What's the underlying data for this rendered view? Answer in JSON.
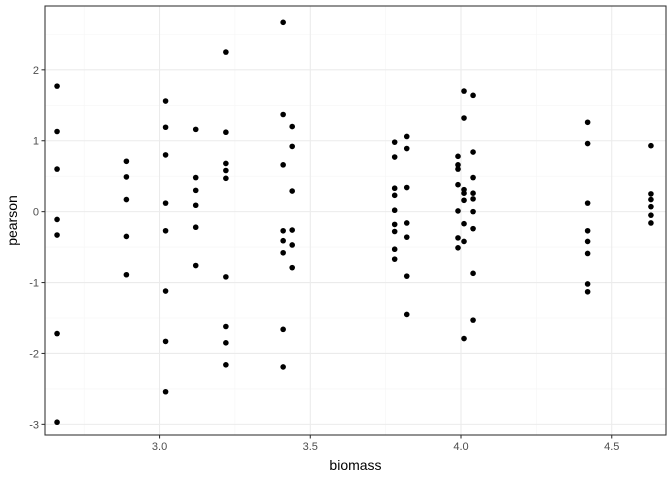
{
  "chart_data": {
    "type": "scatter",
    "title": "",
    "xlabel": "biomass",
    "ylabel": "pearson",
    "xlim": [
      2.62,
      4.68
    ],
    "ylim": [
      -3.15,
      2.9
    ],
    "x_ticks": [
      3.0,
      3.5,
      4.0,
      4.5
    ],
    "x_tick_labels": [
      "3.0",
      "3.5",
      "4.0",
      "4.5"
    ],
    "y_ticks": [
      -3,
      -2,
      -1,
      0,
      1,
      2
    ],
    "y_tick_labels": [
      "-3",
      "-2",
      "-1",
      "0",
      "1",
      "2"
    ],
    "grid": true,
    "legend": "none",
    "point_color": "#000000",
    "series": [
      {
        "x": [
          2.66,
          2.66,
          2.66,
          2.66,
          2.66,
          2.66,
          2.66,
          2.89,
          2.89,
          2.89,
          2.89,
          2.89,
          3.02,
          3.02,
          3.02,
          3.02,
          3.02,
          3.02,
          3.02,
          3.02,
          3.12,
          3.12,
          3.12,
          3.12,
          3.12,
          3.12,
          3.22,
          3.22,
          3.22,
          3.22,
          3.22,
          3.22,
          3.22,
          3.22,
          3.22,
          3.41,
          3.41,
          3.41,
          3.41,
          3.41,
          3.41,
          3.41,
          3.41,
          3.44,
          3.44,
          3.44,
          3.44,
          3.44,
          3.44,
          3.78,
          3.78,
          3.78,
          3.78,
          3.78,
          3.78,
          3.78,
          3.78,
          3.78,
          3.82,
          3.82,
          3.82,
          3.82,
          3.82,
          3.82,
          3.82,
          3.99,
          3.99,
          3.99,
          3.99,
          3.99,
          3.99,
          3.99,
          4.01,
          4.01,
          4.01,
          4.01,
          4.01,
          4.01,
          4.01,
          4.01,
          4.04,
          4.04,
          4.04,
          4.04,
          4.04,
          4.04,
          4.04,
          4.04,
          4.04,
          4.42,
          4.42,
          4.42,
          4.42,
          4.42,
          4.42,
          4.42,
          4.42,
          4.63,
          4.63,
          4.63,
          4.63,
          4.63,
          4.63
        ],
        "y": [
          1.77,
          1.13,
          0.6,
          -0.11,
          -0.33,
          -1.72,
          -2.97,
          0.71,
          0.49,
          0.17,
          -0.35,
          -0.89,
          1.56,
          1.19,
          0.8,
          0.12,
          -0.27,
          -1.12,
          -1.83,
          -2.54,
          1.16,
          0.48,
          0.3,
          0.09,
          -0.22,
          -0.76,
          2.25,
          1.12,
          0.68,
          0.58,
          0.47,
          -0.92,
          -1.62,
          -1.85,
          -2.16,
          2.67,
          1.37,
          0.66,
          -0.27,
          -0.41,
          -0.58,
          -1.66,
          -2.19,
          1.2,
          0.92,
          0.29,
          -0.26,
          -0.47,
          -0.79,
          0.98,
          0.77,
          0.33,
          0.23,
          0.02,
          -0.18,
          -0.28,
          -0.53,
          -0.67,
          1.06,
          0.89,
          0.34,
          -0.16,
          -0.36,
          -0.91,
          -1.45,
          0.78,
          0.66,
          0.6,
          0.38,
          0.01,
          -0.37,
          -0.51,
          1.7,
          1.32,
          0.31,
          0.26,
          0.16,
          -0.17,
          -0.42,
          -1.79,
          1.64,
          0.84,
          0.48,
          0.26,
          0.18,
          -0.24,
          -0.87,
          -1.53,
          0.0,
          1.26,
          0.96,
          0.12,
          -0.27,
          -0.59,
          -1.02,
          -1.13,
          -0.42,
          0.93,
          0.25,
          0.17,
          0.07,
          -0.05,
          -0.16
        ]
      }
    ]
  }
}
